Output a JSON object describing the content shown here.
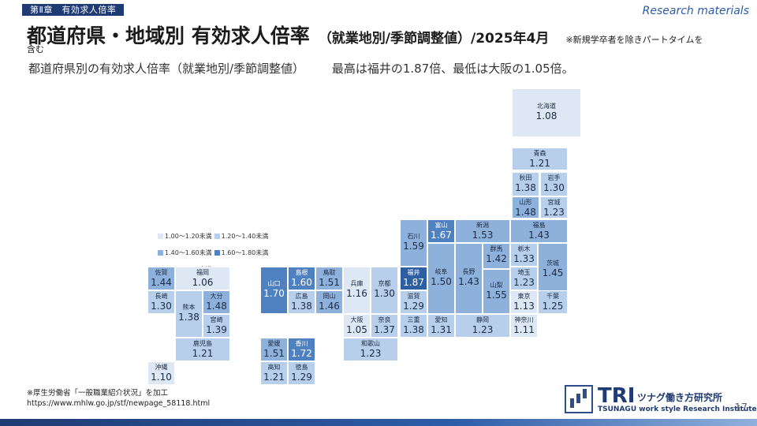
{
  "header": {
    "chapter": "第Ⅱ章　有効求人倍率",
    "research_label": "Research materials",
    "title_main": "都道府県・地域別 有効求人倍率",
    "title_sub": "（就業地別/季節調整値）/2025年4月",
    "title_note": "※新規学卒者を除きパートタイムを",
    "title_note2": "含む",
    "subtitle": "都道府県別の有効求人倍率（就業地別/季節調整値）",
    "highlight": "最高は福井の1.87倍、最低は大阪の1.05倍。"
  },
  "colors": {
    "c1": "#dde8f4",
    "c2": "#b7cfea",
    "c3": "#8eb1dc",
    "c4": "#4f80c0",
    "c5": "#2e5ea2",
    "brand": "#1f3b73"
  },
  "legend": [
    {
      "label": "1.00～1.20未満",
      "color": "#dde8f4"
    },
    {
      "label": "1.20～1.40未満",
      "color": "#b7cfea"
    },
    {
      "label": "1.40～1.60未満",
      "color": "#8eb1dc"
    },
    {
      "label": "1.60～1.80未満",
      "color": "#4f80c0"
    },
    {
      "label": "1.80～2.00未満",
      "color": "#2e5ea2"
    }
  ],
  "chart_data": {
    "type": "table",
    "title": "都道府県別の有効求人倍率（就業地別/季節調整値）",
    "prefectures": [
      {
        "name": "北海道",
        "value": 1.08
      },
      {
        "name": "青森",
        "value": 1.21
      },
      {
        "name": "秋田",
        "value": 1.38
      },
      {
        "name": "岩手",
        "value": 1.3
      },
      {
        "name": "山形",
        "value": 1.48
      },
      {
        "name": "宮城",
        "value": 1.23
      },
      {
        "name": "石川",
        "value": 1.59
      },
      {
        "name": "富山",
        "value": 1.67
      },
      {
        "name": "新潟",
        "value": 1.53
      },
      {
        "name": "福島",
        "value": 1.43
      },
      {
        "name": "群馬",
        "value": 1.42
      },
      {
        "name": "栃木",
        "value": 1.33
      },
      {
        "name": "茨城",
        "value": 1.45
      },
      {
        "name": "福井",
        "value": 1.87
      },
      {
        "name": "岐阜",
        "value": 1.5
      },
      {
        "name": "長野",
        "value": 1.43
      },
      {
        "name": "埼玉",
        "value": 1.23
      },
      {
        "name": "山梨",
        "value": 1.55
      },
      {
        "name": "滋賀",
        "value": 1.29
      },
      {
        "name": "東京",
        "value": 1.13
      },
      {
        "name": "千葉",
        "value": 1.25
      },
      {
        "name": "三重",
        "value": 1.38
      },
      {
        "name": "愛知",
        "value": 1.31
      },
      {
        "name": "静岡",
        "value": 1.23
      },
      {
        "name": "神奈川",
        "value": 1.11
      },
      {
        "name": "山口",
        "value": 1.7
      },
      {
        "name": "島根",
        "value": 1.6
      },
      {
        "name": "鳥取",
        "value": 1.51
      },
      {
        "name": "兵庫",
        "value": 1.16
      },
      {
        "name": "京都",
        "value": 1.3
      },
      {
        "name": "広島",
        "value": 1.38
      },
      {
        "name": "岡山",
        "value": 1.46
      },
      {
        "name": "大阪",
        "value": 1.05
      },
      {
        "name": "奈良",
        "value": 1.37
      },
      {
        "name": "和歌山",
        "value": 1.23
      },
      {
        "name": "愛媛",
        "value": 1.51
      },
      {
        "name": "香川",
        "value": 1.72
      },
      {
        "name": "高知",
        "value": 1.21
      },
      {
        "name": "徳島",
        "value": 1.29
      },
      {
        "name": "佐賀",
        "value": 1.44
      },
      {
        "name": "福岡",
        "value": 1.06
      },
      {
        "name": "長崎",
        "value": 1.3
      },
      {
        "name": "大分",
        "value": 1.48
      },
      {
        "name": "熊本",
        "value": 1.38
      },
      {
        "name": "宮崎",
        "value": 1.39
      },
      {
        "name": "鹿児島",
        "value": 1.21
      },
      {
        "name": "沖縄",
        "value": 1.1
      }
    ]
  },
  "footer": {
    "source_line1": "※厚生労働省「一般職業紹介状況」を加工",
    "source_line2": "https://www.mhlw.go.jp/stf/newpage_58118.html",
    "logo_tri": "TRI",
    "logo_jp": "ツナグ働き方研究所",
    "logo_en": "TSUNAGU work style Research Institute",
    "page_number": "17"
  }
}
